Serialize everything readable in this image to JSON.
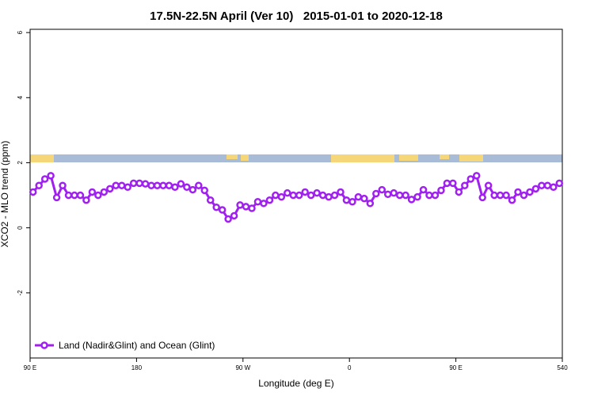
{
  "chart_data": {
    "type": "line",
    "title": "17.5N-22.5N April (Ver 10)   2015-01-01 to 2020-12-18",
    "xlabel": "Longitude (deg E)",
    "ylabel": "XCO2 - MLO trend (ppm)",
    "xlim": [
      90,
      540
    ],
    "ylim": [
      -4,
      6.1
    ],
    "xticks": [
      {
        "value": 90,
        "label": "90 E"
      },
      180,
      {
        "value": 270,
        "label": "90 W"
      },
      {
        "value": 360,
        "label": "0"
      },
      {
        "value": 450,
        "label": "90 E"
      },
      540
    ],
    "yticks": [
      -2,
      0,
      2,
      4,
      6
    ],
    "legend": "bottom-left",
    "x": [
      92.5,
      97.5,
      102.5,
      107.5,
      112.5,
      117.5,
      122.5,
      127.5,
      132.5,
      137.5,
      142.5,
      147.5,
      152.5,
      157.5,
      162.5,
      167.5,
      172.5,
      177.5,
      182.5,
      187.5,
      192.5,
      197.5,
      202.5,
      207.5,
      212.5,
      217.5,
      222.5,
      227.5,
      232.5,
      237.5,
      242.5,
      247.5,
      252.5,
      257.5,
      262.5,
      267.5,
      272.5,
      277.5,
      282.5,
      287.5,
      292.5,
      297.5,
      302.5,
      307.5,
      312.5,
      317.5,
      322.5,
      327.5,
      332.5,
      337.5,
      342.5,
      347.5,
      352.5,
      357.5,
      362.5,
      367.5,
      372.5,
      377.5,
      382.5,
      387.5,
      392.5,
      397.5,
      402.5,
      407.5,
      412.5,
      417.5,
      422.5,
      427.5,
      432.5,
      437.5,
      442.5,
      447.5,
      452.5,
      457.5,
      462.5,
      467.5,
      472.5,
      477.5,
      482.5,
      487.5,
      492.5,
      497.5,
      502.5,
      507.5,
      512.5,
      517.5,
      522.5,
      527.5,
      532.5,
      537.5
    ],
    "series": [
      {
        "name": "Land (Nadir&Glint) and Ocean (Glint)",
        "color": "#a020f0",
        "values": [
          1.1,
          1.3,
          1.5,
          1.6,
          0.93,
          1.3,
          1.0,
          1.0,
          1.0,
          0.85,
          1.1,
          1.0,
          1.1,
          1.2,
          1.3,
          1.3,
          1.25,
          1.37,
          1.37,
          1.35,
          1.3,
          1.3,
          1.3,
          1.3,
          1.25,
          1.35,
          1.25,
          1.17,
          1.3,
          1.15,
          0.85,
          0.63,
          0.55,
          0.27,
          0.37,
          0.7,
          0.65,
          0.6,
          0.8,
          0.75,
          0.85,
          1.0,
          0.95,
          1.07,
          1.0,
          1.0,
          1.1,
          1.0,
          1.07,
          1.0,
          0.95,
          1.0,
          1.1,
          0.85,
          0.8,
          0.95,
          0.9,
          0.75,
          1.05,
          1.17,
          1.03,
          1.07,
          1.0,
          1.0,
          0.87,
          0.95,
          1.17,
          1.0,
          1.0,
          1.15,
          1.37,
          1.37,
          1.1,
          1.3,
          1.5,
          1.6,
          0.93,
          1.3,
          1.0,
          1.0,
          1.0,
          0.85,
          1.1,
          1.0,
          1.1,
          1.2,
          1.3,
          1.3,
          1.25,
          1.37
        ]
      }
    ]
  }
}
